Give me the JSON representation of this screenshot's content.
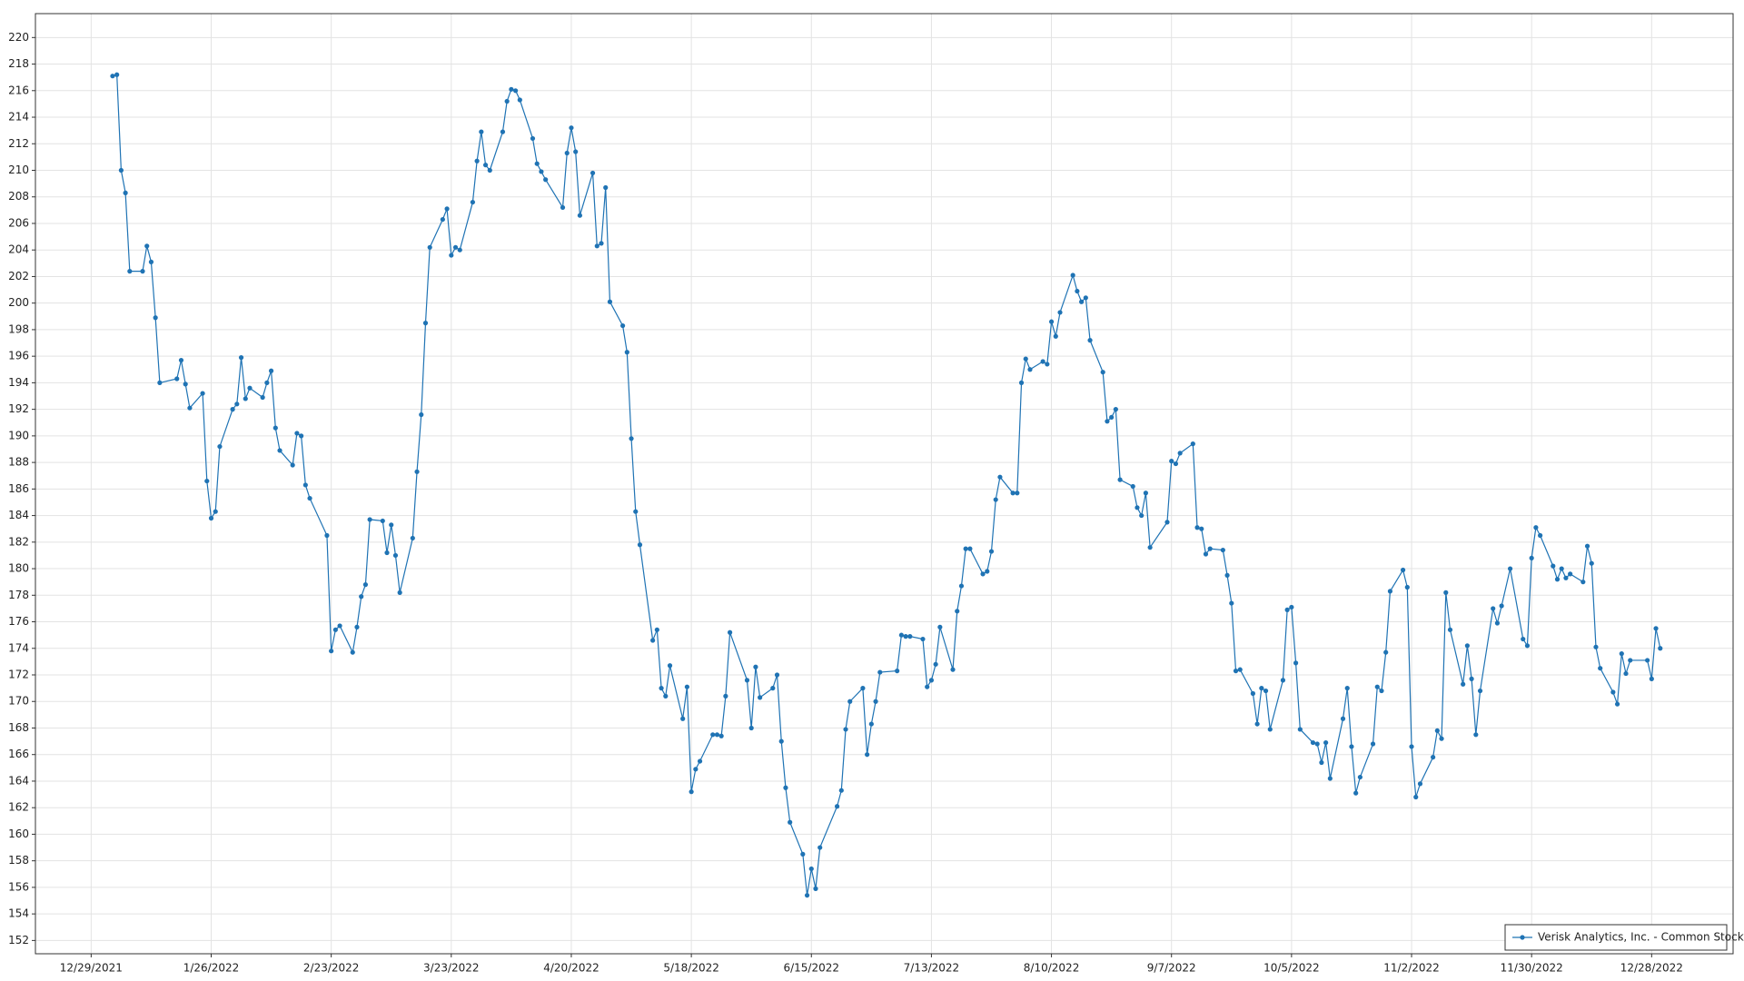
{
  "chart_data": {
    "type": "line",
    "x": [
      "1/3/2022",
      "1/4/2022",
      "1/5/2022",
      "1/6/2022",
      "1/7/2022",
      "1/10/2022",
      "1/11/2022",
      "1/12/2022",
      "1/13/2022",
      "1/14/2022",
      "1/18/2022",
      "1/19/2022",
      "1/20/2022",
      "1/21/2022",
      "1/24/2022",
      "1/25/2022",
      "1/26/2022",
      "1/27/2022",
      "1/28/2022",
      "1/31/2022",
      "2/1/2022",
      "2/2/2022",
      "2/3/2022",
      "2/4/2022",
      "2/7/2022",
      "2/8/2022",
      "2/9/2022",
      "2/10/2022",
      "2/11/2022",
      "2/14/2022",
      "2/15/2022",
      "2/16/2022",
      "2/17/2022",
      "2/18/2022",
      "2/22/2022",
      "2/23/2022",
      "2/24/2022",
      "2/25/2022",
      "2/28/2022",
      "3/1/2022",
      "3/2/2022",
      "3/3/2022",
      "3/4/2022",
      "3/7/2022",
      "3/8/2022",
      "3/9/2022",
      "3/10/2022",
      "3/11/2022",
      "3/14/2022",
      "3/15/2022",
      "3/16/2022",
      "3/17/2022",
      "3/18/2022",
      "3/21/2022",
      "3/22/2022",
      "3/23/2022",
      "3/24/2022",
      "3/25/2022",
      "3/28/2022",
      "3/29/2022",
      "3/30/2022",
      "3/31/2022",
      "4/1/2022",
      "4/4/2022",
      "4/5/2022",
      "4/6/2022",
      "4/7/2022",
      "4/8/2022",
      "4/11/2022",
      "4/12/2022",
      "4/13/2022",
      "4/14/2022",
      "4/18/2022",
      "4/19/2022",
      "4/20/2022",
      "4/21/2022",
      "4/22/2022",
      "4/25/2022",
      "4/26/2022",
      "4/27/2022",
      "4/28/2022",
      "4/29/2022",
      "5/2/2022",
      "5/3/2022",
      "5/4/2022",
      "5/5/2022",
      "5/6/2022",
      "5/9/2022",
      "5/10/2022",
      "5/11/2022",
      "5/12/2022",
      "5/13/2022",
      "5/16/2022",
      "5/17/2022",
      "5/18/2022",
      "5/19/2022",
      "5/20/2022",
      "5/23/2022",
      "5/24/2022",
      "5/25/2022",
      "5/26/2022",
      "5/27/2022",
      "5/31/2022",
      "6/1/2022",
      "6/2/2022",
      "6/3/2022",
      "6/6/2022",
      "6/7/2022",
      "6/8/2022",
      "6/9/2022",
      "6/10/2022",
      "6/13/2022",
      "6/14/2022",
      "6/15/2022",
      "6/16/2022",
      "6/17/2022",
      "6/21/2022",
      "6/22/2022",
      "6/23/2022",
      "6/24/2022",
      "6/27/2022",
      "6/28/2022",
      "6/29/2022",
      "6/30/2022",
      "7/1/2022",
      "7/5/2022",
      "7/6/2022",
      "7/7/2022",
      "7/8/2022",
      "7/11/2022",
      "7/12/2022",
      "7/13/2022",
      "7/14/2022",
      "7/15/2022",
      "7/18/2022",
      "7/19/2022",
      "7/20/2022",
      "7/21/2022",
      "7/22/2022",
      "7/25/2022",
      "7/26/2022",
      "7/27/2022",
      "7/28/2022",
      "7/29/2022",
      "8/1/2022",
      "8/2/2022",
      "8/3/2022",
      "8/4/2022",
      "8/5/2022",
      "8/8/2022",
      "8/9/2022",
      "8/10/2022",
      "8/11/2022",
      "8/12/2022",
      "8/15/2022",
      "8/16/2022",
      "8/17/2022",
      "8/18/2022",
      "8/19/2022",
      "8/22/2022",
      "8/23/2022",
      "8/24/2022",
      "8/25/2022",
      "8/26/2022",
      "8/29/2022",
      "8/30/2022",
      "8/31/2022",
      "9/1/2022",
      "9/2/2022",
      "9/6/2022",
      "9/7/2022",
      "9/8/2022",
      "9/9/2022",
      "9/12/2022",
      "9/13/2022",
      "9/14/2022",
      "9/15/2022",
      "9/16/2022",
      "9/19/2022",
      "9/20/2022",
      "9/21/2022",
      "9/22/2022",
      "9/23/2022",
      "9/26/2022",
      "9/27/2022",
      "9/28/2022",
      "9/29/2022",
      "9/30/2022",
      "10/3/2022",
      "10/4/2022",
      "10/5/2022",
      "10/6/2022",
      "10/7/2022",
      "10/10/2022",
      "10/11/2022",
      "10/12/2022",
      "10/13/2022",
      "10/14/2022",
      "10/17/2022",
      "10/18/2022",
      "10/19/2022",
      "10/20/2022",
      "10/21/2022",
      "10/24/2022",
      "10/25/2022",
      "10/26/2022",
      "10/27/2022",
      "10/28/2022",
      "10/31/2022",
      "11/1/2022",
      "11/2/2022",
      "11/3/2022",
      "11/4/2022",
      "11/7/2022",
      "11/8/2022",
      "11/9/2022",
      "11/10/2022",
      "11/11/2022",
      "11/14/2022",
      "11/15/2022",
      "11/16/2022",
      "11/17/2022",
      "11/18/2022",
      "11/21/2022",
      "11/22/2022",
      "11/23/2022",
      "11/25/2022",
      "11/28/2022",
      "11/29/2022",
      "11/30/2022",
      "12/1/2022",
      "12/2/2022",
      "12/5/2022",
      "12/6/2022",
      "12/7/2022",
      "12/8/2022",
      "12/9/2022",
      "12/12/2022",
      "12/13/2022",
      "12/14/2022",
      "12/15/2022",
      "12/16/2022",
      "12/19/2022",
      "12/20/2022",
      "12/21/2022",
      "12/22/2022",
      "12/23/2022",
      "12/27/2022",
      "12/28/2022",
      "12/29/2022",
      "12/30/2022"
    ],
    "series": [
      {
        "name": "Verisk Analytics, Inc. - Common Stock",
        "color": "#1f73b4",
        "values": [
          217.1,
          217.2,
          210,
          208.3,
          202.4,
          202.4,
          204.3,
          203.1,
          198.9,
          194,
          194.3,
          195.7,
          193.9,
          192.1,
          193.2,
          186.6,
          183.8,
          184.3,
          189.2,
          192,
          192.4,
          195.9,
          192.8,
          193.6,
          192.9,
          194,
          194.9,
          190.6,
          188.9,
          187.8,
          190.2,
          190,
          186.3,
          185.3,
          182.5,
          173.8,
          175.4,
          175.7,
          173.7,
          175.6,
          177.9,
          178.8,
          183.7,
          183.6,
          181.2,
          183.3,
          181,
          178.2,
          182.3,
          187.3,
          191.6,
          198.5,
          204.2,
          206.3,
          207.1,
          203.6,
          204.2,
          204,
          207.6,
          210.7,
          212.9,
          210.4,
          210,
          212.9,
          215.2,
          216.1,
          216,
          215.3,
          212.4,
          210.5,
          209.9,
          209.3,
          207.2,
          211.3,
          213.2,
          211.4,
          206.6,
          209.8,
          204.3,
          204.5,
          208.7,
          200.1,
          198.3,
          196.3,
          189.8,
          184.3,
          181.8,
          174.6,
          175.4,
          171,
          170.4,
          172.7,
          168.7,
          171.1,
          163.2,
          164.9,
          165.5,
          167.5,
          167.5,
          167.4,
          170.4,
          175.2,
          171.6,
          168,
          172.6,
          170.3,
          171,
          172,
          167,
          163.5,
          160.9,
          158.5,
          155.4,
          157.4,
          155.9,
          159,
          162.1,
          163.3,
          167.9,
          170,
          171,
          166,
          168.3,
          170,
          172.2,
          172.3,
          175,
          174.9,
          174.9,
          174.7,
          171.1,
          171.6,
          172.8,
          175.6,
          172.4,
          176.8,
          178.7,
          181.5,
          181.5,
          179.6,
          179.8,
          181.3,
          185.2,
          186.9,
          185.7,
          185.7,
          194,
          195.8,
          195,
          195.6,
          195.4,
          198.6,
          197.5,
          199.3,
          202.1,
          200.9,
          200.1,
          200.4,
          197.2,
          194.8,
          191.1,
          191.4,
          192,
          186.7,
          186.2,
          184.6,
          184,
          185.7,
          181.6,
          183.5,
          188.1,
          187.9,
          188.7,
          189.4,
          183.1,
          183,
          181.1,
          181.5,
          181.4,
          179.5,
          177.4,
          172.3,
          172.4,
          170.6,
          168.3,
          171,
          170.8,
          167.9,
          171.6,
          176.9,
          177.1,
          172.9,
          167.9,
          166.9,
          166.8,
          165.4,
          166.9,
          164.2,
          168.7,
          171,
          166.6,
          163.1,
          164.3,
          166.8,
          171.1,
          170.8,
          173.7,
          178.3,
          179.9,
          178.6,
          166.6,
          162.8,
          163.8,
          165.8,
          167.8,
          167.2,
          178.2,
          175.4,
          171.3,
          174.2,
          171.7,
          167.5,
          170.8,
          177,
          175.9,
          177.2,
          180,
          174.7,
          174.2,
          180.8,
          183.1,
          182.5,
          180.2,
          179.2,
          180,
          179.3,
          179.6,
          179,
          181.7,
          180.4,
          174.1,
          172.5,
          170.7,
          169.8,
          173.6,
          172.1,
          173.1,
          173.1,
          171.7,
          175.5,
          174
        ]
      }
    ],
    "xlim": [
      "12/16/2021",
      "1/16/2023"
    ],
    "xticks": [
      "12/29/2021",
      "1/26/2022",
      "2/23/2022",
      "3/23/2022",
      "4/20/2022",
      "5/18/2022",
      "6/15/2022",
      "7/13/2022",
      "8/10/2022",
      "9/7/2022",
      "10/5/2022",
      "11/2/2022",
      "11/30/2022",
      "12/28/2022"
    ],
    "ylim": [
      151,
      221.8
    ],
    "yticks": [
      152,
      154,
      156,
      158,
      160,
      162,
      164,
      166,
      168,
      170,
      172,
      174,
      176,
      178,
      180,
      182,
      184,
      186,
      188,
      190,
      192,
      194,
      196,
      198,
      200,
      202,
      204,
      206,
      208,
      210,
      212,
      214,
      216,
      218,
      220
    ],
    "grid": true,
    "markers": true,
    "legend": "lower right"
  }
}
